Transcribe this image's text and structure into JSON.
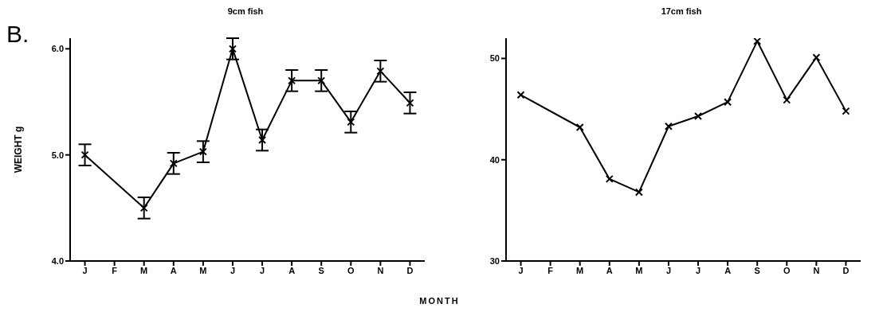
{
  "chart_data": [
    {
      "type": "line",
      "title": "9cm fish",
      "ylabel": "WEIGHT g",
      "xlabel": "MONTH",
      "annotations": [
        "B."
      ],
      "categories": [
        "J",
        "F",
        "M",
        "A",
        "M",
        "J",
        "J",
        "A",
        "S",
        "O",
        "N",
        "D"
      ],
      "series": [
        {
          "color": "#000000",
          "values": [
            5.0,
            null,
            4.5,
            4.92,
            5.03,
            6.0,
            5.14,
            5.7,
            5.7,
            5.31,
            5.79,
            5.49
          ],
          "errors": [
            0.1,
            null,
            0.1,
            0.1,
            0.1,
            0.1,
            0.1,
            0.1,
            0.1,
            0.1,
            0.1,
            0.1
          ]
        }
      ],
      "ylim": [
        4,
        6.1
      ],
      "yticks": [
        {
          "value": 4,
          "label": "4.0"
        },
        {
          "value": 5,
          "label": "5.0"
        },
        {
          "value": 6,
          "label": "6.0"
        }
      ],
      "marker": "cross",
      "line_style": "solid"
    },
    {
      "type": "line",
      "title": "17cm fish",
      "categories": [
        "J",
        "F",
        "M",
        "A",
        "M",
        "J",
        "J",
        "A",
        "S",
        "O",
        "N",
        "D"
      ],
      "series": [
        {
          "color": "#000000",
          "values": [
            46.4,
            null,
            43.2,
            38.1,
            36.8,
            43.3,
            44.3,
            45.7,
            51.7,
            45.9,
            50.1,
            44.8
          ]
        }
      ],
      "ylim": [
        30,
        52
      ],
      "yticks": [
        30,
        40,
        50
      ],
      "marker": "cross",
      "line_style": "solid"
    }
  ]
}
